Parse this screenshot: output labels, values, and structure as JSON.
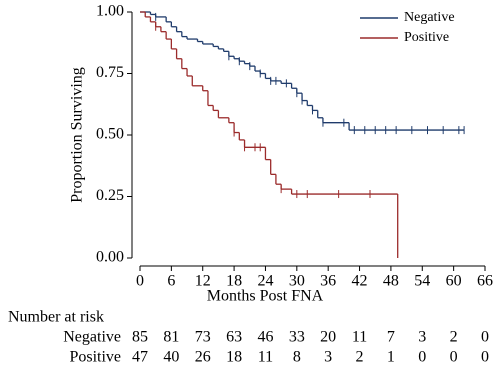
{
  "chart_data": {
    "type": "km",
    "xlabel": "Months Post FNA",
    "ylabel": "Proportion Surviving",
    "xlim": [
      0,
      66
    ],
    "ylim": [
      0,
      1
    ],
    "xticks": [
      0,
      6,
      12,
      18,
      24,
      30,
      36,
      42,
      48,
      54,
      60,
      66
    ],
    "yticks": [
      {
        "value": 0,
        "label": "0.00"
      },
      {
        "value": 0.25,
        "label": "0.25"
      },
      {
        "value": 0.5,
        "label": "0.50"
      },
      {
        "value": 0.75,
        "label": "0.75"
      },
      {
        "value": 1,
        "label": "1.00"
      }
    ],
    "legend": "top-right",
    "series": [
      {
        "name": "Negative",
        "color": "#1f3b6b",
        "x": [
          0,
          2,
          3,
          5,
          6,
          7,
          8,
          9,
          11,
          12,
          14,
          15,
          16,
          17,
          18,
          19,
          20,
          21,
          22,
          23,
          24,
          25,
          27,
          29,
          30,
          31,
          32,
          33,
          34,
          35,
          40,
          62
        ],
        "values": [
          1.0,
          0.99,
          0.98,
          0.96,
          0.94,
          0.92,
          0.9,
          0.89,
          0.88,
          0.87,
          0.86,
          0.85,
          0.84,
          0.82,
          0.81,
          0.8,
          0.79,
          0.78,
          0.76,
          0.75,
          0.73,
          0.72,
          0.71,
          0.69,
          0.67,
          0.64,
          0.62,
          0.6,
          0.57,
          0.55,
          0.52,
          0.52
        ],
        "censored_x": [
          3,
          17,
          19,
          21,
          23,
          25,
          26,
          28,
          30,
          31,
          33,
          35,
          39,
          41,
          43,
          45,
          47,
          49,
          52,
          55,
          58,
          61,
          62
        ]
      },
      {
        "name": "Positive",
        "color": "#9b2b2b",
        "x": [
          0,
          1,
          2,
          3,
          4,
          5,
          6,
          7,
          8,
          9,
          10,
          12,
          13,
          14,
          15,
          17,
          18,
          19,
          20,
          24,
          25,
          26,
          27,
          29,
          49.3
        ],
        "values": [
          1.0,
          0.98,
          0.96,
          0.94,
          0.92,
          0.89,
          0.85,
          0.81,
          0.77,
          0.74,
          0.7,
          0.68,
          0.62,
          0.6,
          0.57,
          0.55,
          0.51,
          0.48,
          0.45,
          0.4,
          0.34,
          0.3,
          0.28,
          0.26,
          0
        ],
        "censored_x": [
          3,
          18,
          20,
          22,
          23,
          27,
          30,
          32,
          38,
          44
        ]
      }
    ],
    "risk_table": {
      "title": "Number at risk",
      "rows": [
        {
          "name": "Negative",
          "values": [
            85,
            81,
            73,
            63,
            46,
            33,
            20,
            11,
            7,
            3,
            2,
            0
          ]
        },
        {
          "name": "Positive",
          "values": [
            47,
            40,
            26,
            18,
            11,
            8,
            3,
            2,
            1,
            0,
            0,
            0
          ]
        }
      ]
    }
  }
}
